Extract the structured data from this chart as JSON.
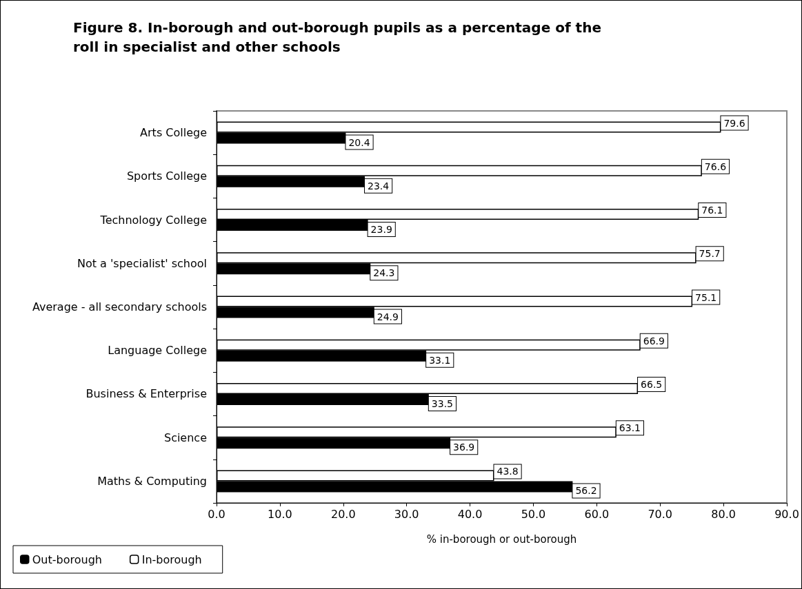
{
  "chart_data": {
    "type": "bar",
    "orientation": "horizontal",
    "title": "Figure 8. In-borough and out-borough pupils as a percentage of the\nroll in specialist and other schools",
    "xlabel": "% in-borough or out-borough",
    "categories": [
      "Arts College",
      "Sports College",
      "Technology College",
      "Not a 'specialist' school",
      "Average - all secondary schools",
      "Language College",
      "Business & Enterprise",
      "Science",
      "Maths & Computing"
    ],
    "series": [
      {
        "name": "Out-borough",
        "color": "#000000",
        "values": [
          20.4,
          23.4,
          23.9,
          24.3,
          24.9,
          33.1,
          33.5,
          36.9,
          56.2
        ]
      },
      {
        "name": "In-borough",
        "color": "#ffffff",
        "values": [
          79.6,
          76.6,
          76.1,
          75.7,
          75.1,
          66.9,
          66.5,
          63.1,
          43.8
        ]
      }
    ],
    "xlim": [
      0,
      90
    ],
    "xticks": [
      {
        "value": 0,
        "label": "0.0"
      },
      {
        "value": 10,
        "label": "10.0"
      },
      {
        "value": 20,
        "label": "20.0"
      },
      {
        "value": 30,
        "label": "30.0"
      },
      {
        "value": 40,
        "label": "40.0"
      },
      {
        "value": 50,
        "label": "50.0"
      },
      {
        "value": 60,
        "label": "60.0"
      },
      {
        "value": 70,
        "label": "70.0"
      },
      {
        "value": 80,
        "label": "80.0"
      },
      {
        "value": 90,
        "label": "90.0"
      }
    ],
    "data_labels": true,
    "grid": false,
    "legend": "bottom left"
  }
}
